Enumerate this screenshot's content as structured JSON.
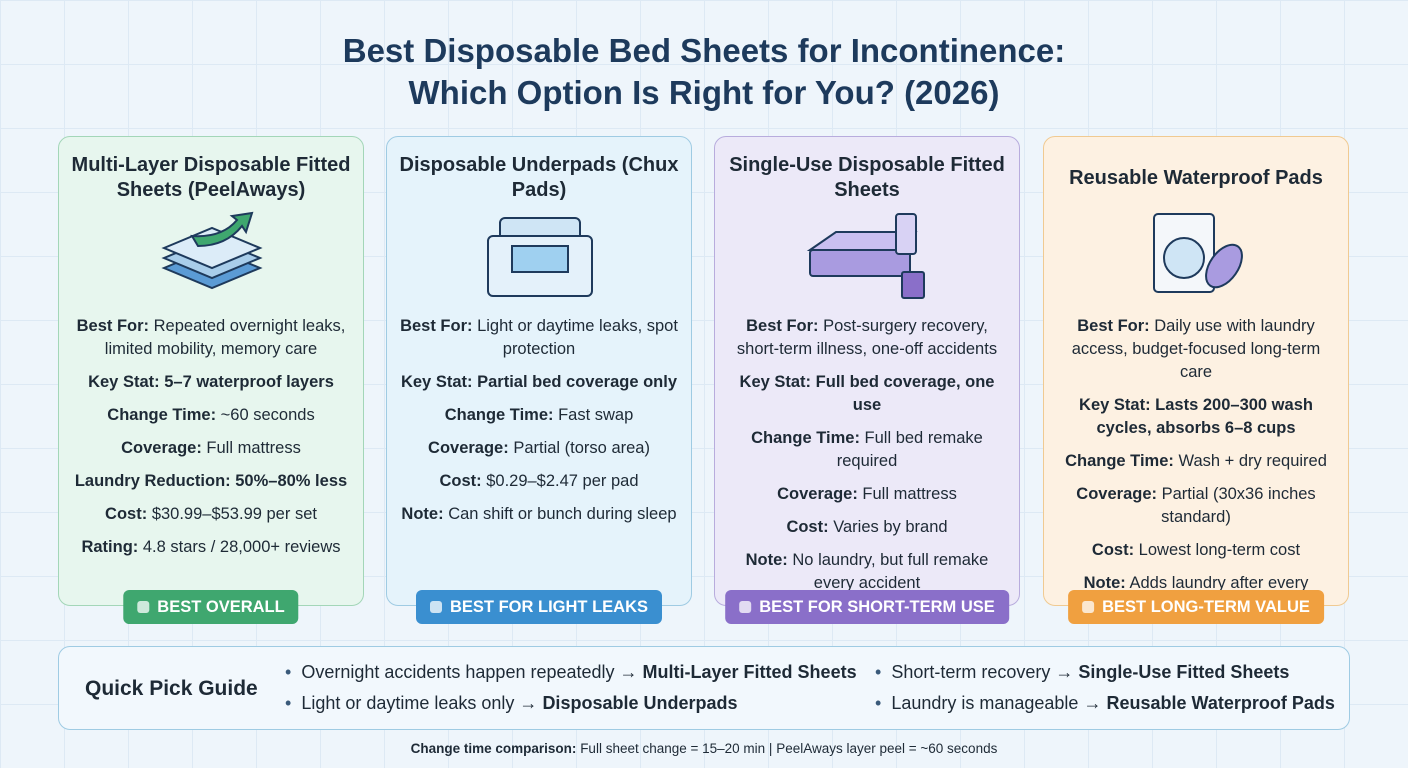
{
  "header": {
    "title_lines": [
      "Best Disposable Bed Sheets for Incontinence:",
      "Which Option Is Right for You? (2026)"
    ]
  },
  "cards": [
    {
      "title": "Multi-Layer Disposable Fitted Sheets (PeelAways)",
      "badge": "BEST OVERALL",
      "color": "#3fa76f",
      "bg": "#e7f6ee",
      "border": "#a3d6b8",
      "fields": [
        {
          "label": "Best For:",
          "value": "Repeated overnight leaks, limited mobility, memory care"
        },
        {
          "label": "Key Stat:",
          "value": "5–7 waterproof layers",
          "strong": true
        },
        {
          "label": "Change Time:",
          "value": "~60 seconds"
        },
        {
          "label": "Coverage:",
          "value": "Full mattress"
        },
        {
          "label": "Laundry Reduction:",
          "value": "50%–80% less",
          "strong": true
        },
        {
          "label": "Cost:",
          "value": "$30.99–$53.99 per set"
        },
        {
          "label": "Rating:",
          "value": "4.8 stars / 28,000+ reviews"
        }
      ]
    },
    {
      "title": "Disposable Underpads (Chux Pads)",
      "badge": "BEST FOR LIGHT LEAKS",
      "color": "#3a8fd0",
      "bg": "#e5f3fb",
      "border": "#9fcbe3",
      "fields": [
        {
          "label": "Best For:",
          "value": "Light or daytime leaks, spot protection"
        },
        {
          "label": "Key Stat:",
          "value": "Partial bed coverage only",
          "strong": true
        },
        {
          "label": "Change Time:",
          "value": "Fast swap"
        },
        {
          "label": "Coverage:",
          "value": "Partial (torso area)"
        },
        {
          "label": "Cost:",
          "value": "$0.29–$2.47 per pad"
        },
        {
          "label": "Note:",
          "value": "Can shift or bunch during sleep"
        }
      ]
    },
    {
      "title": "Single-Use Disposable Fitted Sheets",
      "badge": "BEST FOR SHORT-TERM USE",
      "color": "#8a6fc9",
      "bg": "#ece9f8",
      "border": "#b8acdd",
      "fields": [
        {
          "label": "Best For:",
          "value": "Post-surgery recovery, short-term illness, one-off accidents"
        },
        {
          "label": "Key Stat:",
          "value": "Full bed coverage, one use",
          "strong": true
        },
        {
          "label": "Change Time:",
          "value": "Full bed remake required"
        },
        {
          "label": "Coverage:",
          "value": "Full mattress"
        },
        {
          "label": "Cost:",
          "value": "Varies by brand"
        },
        {
          "label": "Note:",
          "value": "No laundry, but full remake every accident"
        }
      ]
    },
    {
      "title": "Reusable Waterproof Pads",
      "badge": "BEST LONG-TERM VALUE",
      "color": "#f0a040",
      "bg": "#fdf1e2",
      "border": "#f0ca92",
      "fields": [
        {
          "label": "Best For:",
          "value": "Daily use with laundry access, budget-focused long-term care"
        },
        {
          "label": "Key Stat:",
          "value": "Lasts 200–300 wash cycles, absorbs 6–8 cups",
          "strong": true
        },
        {
          "label": "Change Time:",
          "value": "Wash + dry required"
        },
        {
          "label": "Coverage:",
          "value": "Partial (30x36 inches standard)"
        },
        {
          "label": "Cost:",
          "value": "Lowest long-term cost"
        },
        {
          "label": "Note:",
          "value": "Adds laundry after every accident"
        }
      ]
    }
  ],
  "quick_pick": {
    "title": "Quick Pick Guide",
    "items": [
      {
        "text": "Overnight accidents happen repeatedly →",
        "pick": "Multi-Layer Fitted Sheets"
      },
      {
        "text": "Short-term recovery →",
        "pick": "Single-Use Fitted Sheets"
      },
      {
        "text": "Light or daytime leaks only →",
        "pick": "Disposable Underpads"
      },
      {
        "text": "Laundry is manageable →",
        "pick": "Reusable Waterproof Pads"
      }
    ]
  },
  "footer": {
    "label": "Change time comparison:",
    "text": "Full sheet change = 15–20 min | PeelAways layer peel = ~60 seconds"
  }
}
